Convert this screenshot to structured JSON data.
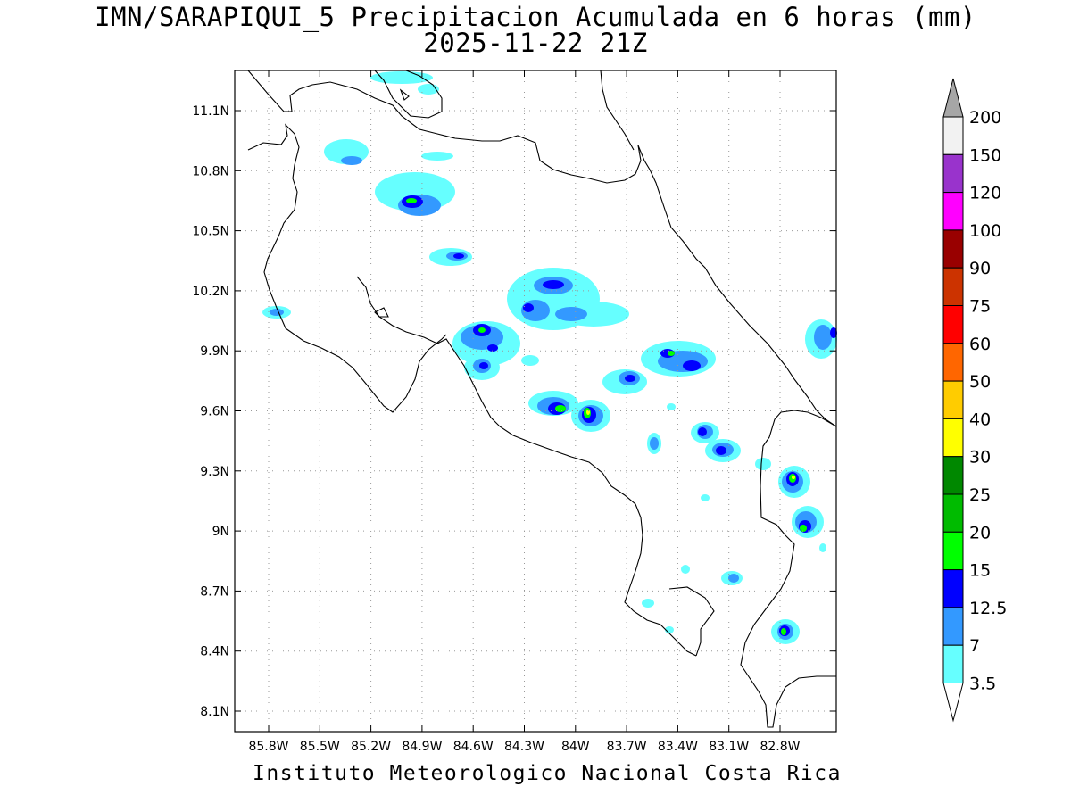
{
  "title": {
    "line1": "IMN/SARAPIQUI_5 Precipitacion Acumulada en 6 horas (mm)",
    "line2": "2025-11-22 21Z"
  },
  "credit": "Instituto Meteorologico Nacional Costa Rica",
  "map": {
    "lat_labels": [
      "11.1N",
      "10.8N",
      "10.5N",
      "10.2N",
      "9.9N",
      "9.6N",
      "9.3N",
      "9N",
      "8.7N",
      "8.4N",
      "8.1N"
    ],
    "lon_labels": [
      "85.8W",
      "85.5W",
      "85.2W",
      "84.9W",
      "84.6W",
      "84.3W",
      "84W",
      "83.7W",
      "83.4W",
      "83.1W",
      "82.8W"
    ],
    "grid": "dotted",
    "coastline_color": "#000000"
  },
  "legend": {
    "labels": [
      "200",
      "150",
      "120",
      "100",
      "90",
      "75",
      "60",
      "50",
      "40",
      "30",
      "25",
      "20",
      "15",
      "12.5",
      "7",
      "3.5"
    ],
    "colors": [
      "#f2f2f2",
      "#9933cc",
      "#ff00ff",
      "#990000",
      "#cc3300",
      "#ff0000",
      "#ff6600",
      "#ffcc00",
      "#ffff00",
      "#008800",
      "#00bb00",
      "#00ff00",
      "#0000ff",
      "#3399ff",
      "#66ffff"
    ],
    "top_arrow_color": "#a6a6a6"
  }
}
